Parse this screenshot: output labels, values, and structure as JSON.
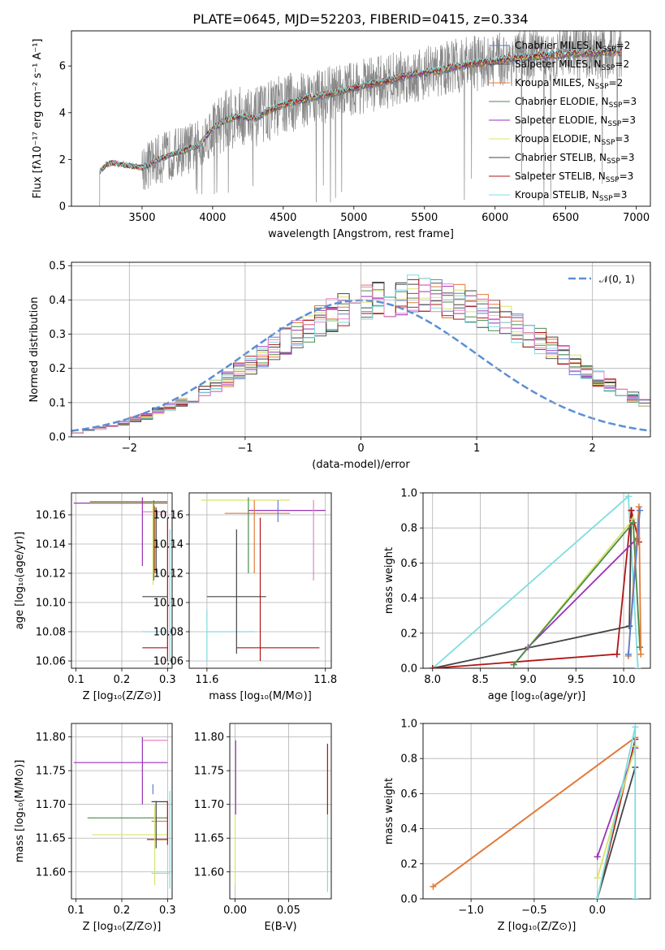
{
  "title": "PLATE=0645, MJD=52203, FIBERID=0415, z=0.334",
  "colors": {
    "Chabrier MILES": "#5b7fd1",
    "Salpeter MILES": "#555555",
    "Kroupa MILES": "#e07b39",
    "Chabrier ELODIE": "#4d8a4d",
    "Salpeter ELODIE": "#9a32b8",
    "Kroupa ELODIE": "#d9e36b",
    "Chabrier STELIB": "#444444",
    "Salpeter STELIB": "#b01515",
    "Kroupa STELIB": "#7fdde0",
    "pink": "#e882c8",
    "data": "#888888",
    "normal": "#5b8fd6"
  },
  "chart_data": [
    {
      "id": "spectrum",
      "type": "line",
      "title": "PLATE=0645, MJD=52203, FIBERID=0415, z=0.334",
      "xlabel": "wavelength [Angstrom, rest frame]",
      "ylabel": "Flux [fλ10⁻¹⁷ erg cm⁻² s⁻¹ A⁻¹]",
      "xlim": [
        3000,
        7100
      ],
      "ylim": [
        0,
        7.5
      ],
      "xticks": [
        "3500",
        "4000",
        "4500",
        "5000",
        "5500",
        "6000",
        "6500",
        "7000"
      ],
      "yticks": [
        "0",
        "2",
        "4",
        "6"
      ],
      "grid": false,
      "legend_position": "top-right",
      "legend": [
        {
          "label": "Chabrier MILES, N",
          "sub": "SSP",
          "tail": "=2"
        },
        {
          "label": "Salpeter MILES, N",
          "sub": "SSP",
          "tail": "=2"
        },
        {
          "label": "Kroupa MILES, N",
          "sub": "SSP",
          "tail": "=2"
        },
        {
          "label": "Chabrier ELODIE, N",
          "sub": "SSP",
          "tail": "=3"
        },
        {
          "label": "Salpeter ELODIE, N",
          "sub": "SSP",
          "tail": "=3"
        },
        {
          "label": "Kroupa ELODIE, N",
          "sub": "SSP",
          "tail": "=3"
        },
        {
          "label": "Chabrier STELIB, N",
          "sub": "SSP",
          "tail": "=3"
        },
        {
          "label": "Salpeter STELIB, N",
          "sub": "SSP",
          "tail": "=3"
        },
        {
          "label": "Kroupa STELIB, N",
          "sub": "SSP",
          "tail": "=3"
        }
      ],
      "model_continuum": [
        [
          3200,
          1.5
        ],
        [
          3250,
          1.8
        ],
        [
          3300,
          1.85
        ],
        [
          3400,
          1.75
        ],
        [
          3500,
          1.65
        ],
        [
          3600,
          1.95
        ],
        [
          3700,
          2.2
        ],
        [
          3800,
          2.4
        ],
        [
          3900,
          2.6
        ],
        [
          4000,
          3.3
        ],
        [
          4100,
          3.7
        ],
        [
          4200,
          3.85
        ],
        [
          4300,
          3.75
        ],
        [
          4400,
          4.1
        ],
        [
          4500,
          4.35
        ],
        [
          4600,
          4.5
        ],
        [
          4700,
          4.65
        ],
        [
          4800,
          4.75
        ],
        [
          4900,
          4.9
        ],
        [
          5000,
          5.05
        ],
        [
          5100,
          5.2
        ],
        [
          5200,
          5.3
        ],
        [
          5300,
          5.45
        ],
        [
          5400,
          5.6
        ],
        [
          5500,
          5.7
        ],
        [
          5600,
          5.8
        ],
        [
          5700,
          5.95
        ],
        [
          5800,
          6.05
        ],
        [
          5900,
          6.15
        ],
        [
          6000,
          6.2
        ],
        [
          6100,
          6.3
        ],
        [
          6200,
          6.35
        ],
        [
          6300,
          6.4
        ],
        [
          6400,
          6.45
        ],
        [
          6500,
          6.5
        ],
        [
          6600,
          6.55
        ],
        [
          6700,
          6.55
        ],
        [
          6800,
          6.6
        ],
        [
          6900,
          6.6
        ]
      ]
    },
    {
      "id": "residual-histogram",
      "type": "bar",
      "xlabel": "(data-model)/error",
      "ylabel": "Normed distribution",
      "xlim": [
        -2.5,
        2.5
      ],
      "ylim": [
        0,
        0.51
      ],
      "xticks": [
        "−2",
        "−1",
        "0",
        "1",
        "2"
      ],
      "yticks": [
        "0.0",
        "0.1",
        "0.2",
        "0.3",
        "0.4",
        "0.5"
      ],
      "grid": true,
      "legend_position": "top-right",
      "legend": [
        "𝒩(0, 1)"
      ],
      "bin_width": 0.1,
      "hist_base": [
        0.013,
        0.02,
        0.025,
        0.03,
        0.04,
        0.05,
        0.06,
        0.075,
        0.09,
        0.1,
        0.115,
        0.13,
        0.15,
        0.17,
        0.19,
        0.21,
        0.235,
        0.26,
        0.28,
        0.3,
        0.32,
        0.34,
        0.355,
        0.37,
        0.385,
        0.395,
        0.4,
        0.405,
        0.41,
        0.415,
        0.41,
        0.405,
        0.4,
        0.395,
        0.385,
        0.37,
        0.355,
        0.34,
        0.32,
        0.3,
        0.28,
        0.26,
        0.235,
        0.21,
        0.19,
        0.17,
        0.15,
        0.13,
        0.115,
        0.1
      ]
    },
    {
      "id": "age-vs-Z",
      "type": "scatter",
      "xlabel": "Z [log₁₀(Z/Z⊙)]",
      "ylabel": "age  [log₁₀(age/yr)]",
      "xlim": [
        0.09,
        0.31
      ],
      "ylim": [
        10.055,
        10.175
      ],
      "xticks": [
        "0.1",
        "0.2",
        "0.3"
      ],
      "yticks": [
        "10.06",
        "10.08",
        "10.10",
        "10.12",
        "10.14",
        "10.16"
      ],
      "grid": true
    },
    {
      "id": "age-vs-mass",
      "type": "scatter",
      "xlabel": "mass [log₁₀(M/M⊙)]",
      "xlim": [
        11.57,
        11.81
      ],
      "ylim": [
        10.055,
        10.175
      ],
      "xticks": [
        "11.6",
        "11.8"
      ],
      "yticks": [
        "10.06",
        "10.08",
        "10.10",
        "10.12",
        "10.14",
        "10.16"
      ],
      "grid": true
    },
    {
      "id": "weight-vs-age",
      "type": "line",
      "xlabel": "age  [log₁₀(age/yr)]",
      "ylabel": "mass weight",
      "xlim": [
        7.9,
        10.28
      ],
      "ylim": [
        0,
        1
      ],
      "xticks": [
        "8.0",
        "8.5",
        "9.0",
        "9.5",
        "10.0"
      ],
      "yticks": [
        "0.0",
        "0.2",
        "0.4",
        "0.6",
        "0.8",
        "1.0"
      ],
      "grid": true
    },
    {
      "id": "mass-vs-Z",
      "type": "scatter",
      "xlabel": "Z [log₁₀(Z/Z⊙)]",
      "ylabel": "mass [log₁₀(M/M⊙)]",
      "xlim": [
        0.09,
        0.31
      ],
      "ylim": [
        11.56,
        11.82
      ],
      "xticks": [
        "0.1",
        "0.2",
        "0.3"
      ],
      "yticks": [
        "11.60",
        "11.65",
        "11.70",
        "11.75",
        "11.80"
      ],
      "grid": true
    },
    {
      "id": "mass-vs-EBV",
      "type": "scatter",
      "xlabel": "E(B-V)",
      "xlim": [
        -0.005,
        0.09
      ],
      "ylim": [
        11.56,
        11.82
      ],
      "xticks": [
        "0.00",
        "0.05"
      ],
      "yticks": [
        "11.60",
        "11.65",
        "11.70",
        "11.75",
        "11.80"
      ],
      "grid": true
    },
    {
      "id": "weight-vs-Z",
      "type": "line",
      "xlabel": "Z [log₁₀(Z/Z⊙)]",
      "ylabel": "mass weight",
      "xlim": [
        -1.38,
        0.42
      ],
      "ylim": [
        0,
        1
      ],
      "xticks": [
        "−1.0",
        "−0.5",
        "0.0"
      ],
      "yticks": [
        "0.0",
        "0.2",
        "0.4",
        "0.6",
        "0.8",
        "1.0"
      ],
      "grid": true
    }
  ],
  "markers": {
    "age_Z_hbars": [
      {
        "c": "Salpeter ELODIE",
        "y": 10.168,
        "x0": 0.095,
        "x1": 0.3
      },
      {
        "c": "Kroupa ELODIE",
        "y": 10.1685,
        "x0": 0.13,
        "x1": 0.3
      },
      {
        "c": "Chabrier ELODIE",
        "y": 10.169,
        "x0": 0.13,
        "x1": 0.3
      },
      {
        "c": "pink",
        "y": 10.162,
        "x0": 0.245,
        "x1": 0.3
      },
      {
        "c": "Chabrier STELIB",
        "y": 10.104,
        "x0": 0.245,
        "x1": 0.3
      },
      {
        "c": "Kroupa STELIB",
        "y": 10.08,
        "x0": 0.245,
        "x1": 0.305
      },
      {
        "c": "Salpeter STELIB",
        "y": 10.069,
        "x0": 0.245,
        "x1": 0.3
      }
    ],
    "age_Z_vbars": [
      {
        "c": "Salpeter ELODIE",
        "x": 0.245,
        "y0": 10.125,
        "y1": 10.172
      },
      {
        "c": "Kroupa ELODIE",
        "x": 0.268,
        "y0": 10.112,
        "y1": 10.168
      },
      {
        "c": "Chabrier ELODIE",
        "x": 0.27,
        "y0": 10.115,
        "y1": 10.17
      },
      {
        "c": "Kroupa MILES",
        "x": 0.272,
        "y0": 10.12,
        "y1": 10.166
      },
      {
        "c": "Chabrier STELIB",
        "x": 0.275,
        "y0": 10.12,
        "y1": 10.165
      },
      {
        "c": "Salpeter STELIB",
        "x": 0.3,
        "y0": 10.06,
        "y1": 10.158
      },
      {
        "c": "Kroupa STELIB",
        "x": 0.305,
        "y0": 10.06,
        "y1": 10.15
      }
    ],
    "age_mass_hbars": [
      {
        "c": "Kroupa ELODIE",
        "y": 10.17,
        "x0": 11.59,
        "x1": 11.74
      },
      {
        "c": "Salpeter ELODIE",
        "y": 10.163,
        "x0": 11.67,
        "x1": 11.8
      },
      {
        "c": "Kroupa MILES",
        "y": 10.161,
        "x0": 11.63,
        "x1": 11.74
      },
      {
        "c": "Chabrier STELIB",
        "y": 10.104,
        "x0": 11.6,
        "x1": 11.7
      },
      {
        "c": "Kroupa STELIB",
        "y": 10.08,
        "x0": 11.6,
        "x1": 11.68
      },
      {
        "c": "Salpeter STELIB",
        "y": 10.069,
        "x0": 11.65,
        "x1": 11.79
      }
    ],
    "age_mass_vbars": [
      {
        "c": "Chabrier STELIB",
        "x": 11.65,
        "y0": 10.065,
        "y1": 10.15
      },
      {
        "c": "Chabrier ELODIE",
        "x": 11.67,
        "y0": 10.12,
        "y1": 10.172
      },
      {
        "c": "Kroupa MILES",
        "x": 11.68,
        "y0": 10.12,
        "y1": 10.17
      },
      {
        "c": "Salpeter STELIB",
        "x": 11.69,
        "y0": 10.06,
        "y1": 10.158
      },
      {
        "c": "Chabrier MILES",
        "x": 11.72,
        "y0": 10.155,
        "y1": 10.17
      },
      {
        "c": "pink",
        "x": 11.78,
        "y0": 10.115,
        "y1": 10.17
      },
      {
        "c": "Kroupa STELIB",
        "x": 11.6,
        "y0": 10.06,
        "y1": 10.095
      }
    ],
    "mass_Z_hbars": [
      {
        "c": "pink",
        "y": 11.795,
        "x0": 0.245,
        "x1": 0.3
      },
      {
        "c": "Salpeter ELODIE",
        "y": 11.762,
        "x0": 0.095,
        "x1": 0.3
      },
      {
        "c": "Chabrier STELIB",
        "y": 11.704,
        "x0": 0.265,
        "x1": 0.3
      },
      {
        "c": "Chabrier ELODIE",
        "y": 11.68,
        "x0": 0.125,
        "x1": 0.3
      },
      {
        "c": "Kroupa MILES",
        "y": 11.675,
        "x0": 0.265,
        "x1": 0.3
      },
      {
        "c": "Kroupa ELODIE",
        "y": 11.655,
        "x0": 0.135,
        "x1": 0.3
      },
      {
        "c": "Salpeter STELIB",
        "y": 11.648,
        "x0": 0.255,
        "x1": 0.3
      },
      {
        "c": "Kroupa STELIB",
        "y": 11.598,
        "x0": 0.265,
        "x1": 0.305
      }
    ],
    "mass_Z_vbars": [
      {
        "c": "Salpeter ELODIE",
        "x": 0.245,
        "y0": 11.7,
        "y1": 11.8
      },
      {
        "c": "Chabrier MILES",
        "x": 0.268,
        "y0": 11.715,
        "y1": 11.73
      },
      {
        "c": "Kroupa ELODIE",
        "x": 0.272,
        "y0": 11.58,
        "y1": 11.7
      },
      {
        "c": "Chabrier STELIB",
        "x": 0.275,
        "y0": 11.635,
        "y1": 11.705
      },
      {
        "c": "Salpeter STELIB",
        "x": 0.3,
        "y0": 11.64,
        "y1": 11.705
      },
      {
        "c": "Kroupa STELIB",
        "x": 0.305,
        "y0": 11.575,
        "y1": 11.72
      }
    ],
    "mass_EBV_vbars": [
      {
        "c": "Salpeter ELODIE",
        "x": 0.0005,
        "y0": 11.685,
        "y1": 11.795
      },
      {
        "c": "Kroupa ELODIE",
        "x": 0.0,
        "y0": 11.58,
        "y1": 11.685
      },
      {
        "c": "Salpeter STELIB",
        "x": 0.0865,
        "y0": 11.685,
        "y1": 11.79
      },
      {
        "c": "Kroupa STELIB",
        "x": 0.0865,
        "y0": 11.57,
        "y1": 11.685
      }
    ],
    "weight_age_lines": [
      {
        "c": "Kroupa STELIB",
        "pts": [
          [
            8.0,
            0.0
          ],
          [
            10.05,
            0.98
          ],
          [
            10.15,
            0.0
          ]
        ]
      },
      {
        "c": "Chabrier STELIB",
        "pts": [
          [
            8.0,
            0.0
          ],
          [
            10.06,
            0.24
          ],
          [
            10.08,
            0.9
          ]
        ]
      },
      {
        "c": "Salpeter STELIB",
        "pts": [
          [
            8.0,
            0.0
          ],
          [
            9.93,
            0.08
          ],
          [
            10.08,
            0.9
          ],
          [
            10.16,
            0.72
          ]
        ]
      },
      {
        "c": "Salpeter ELODIE",
        "pts": [
          [
            8.85,
            0.02
          ],
          [
            9.0,
            0.12
          ],
          [
            10.14,
            0.74
          ]
        ]
      },
      {
        "c": "Kroupa ELODIE",
        "pts": [
          [
            8.85,
            0.02
          ],
          [
            10.1,
            0.85
          ],
          [
            10.17,
            0.12
          ]
        ]
      },
      {
        "c": "Chabrier ELODIE",
        "pts": [
          [
            8.85,
            0.02
          ],
          [
            10.1,
            0.83
          ],
          [
            10.17,
            0.12
          ]
        ]
      },
      {
        "c": "Kroupa MILES",
        "pts": [
          [
            10.05,
            0.07
          ],
          [
            10.16,
            0.92
          ],
          [
            10.18,
            0.08
          ]
        ]
      },
      {
        "c": "Chabrier MILES",
        "pts": [
          [
            10.05,
            0.08
          ],
          [
            10.17,
            0.9
          ]
        ]
      }
    ],
    "weight_Z_lines": [
      {
        "c": "Kroupa MILES",
        "pts": [
          [
            -1.3,
            0.07
          ],
          [
            0.3,
            0.92
          ]
        ],
        "w": 2
      },
      {
        "c": "Salpeter STELIB",
        "pts": [
          [
            0.0,
            0.0
          ],
          [
            0.3,
            0.91
          ]
        ]
      },
      {
        "c": "Chabrier STELIB",
        "pts": [
          [
            0.0,
            0.0
          ],
          [
            0.3,
            0.75
          ]
        ]
      },
      {
        "c": "Salpeter ELODIE",
        "pts": [
          [
            0.0,
            0.24
          ],
          [
            0.3,
            0.86
          ]
        ]
      },
      {
        "c": "Kroupa ELODIE",
        "pts": [
          [
            0.0,
            0.12
          ],
          [
            0.3,
            0.87
          ]
        ]
      },
      {
        "c": "Kroupa STELIB",
        "pts": [
          [
            0.0,
            0.0
          ],
          [
            0.3,
            0.98
          ],
          [
            0.3,
            0.0
          ]
        ]
      }
    ]
  }
}
